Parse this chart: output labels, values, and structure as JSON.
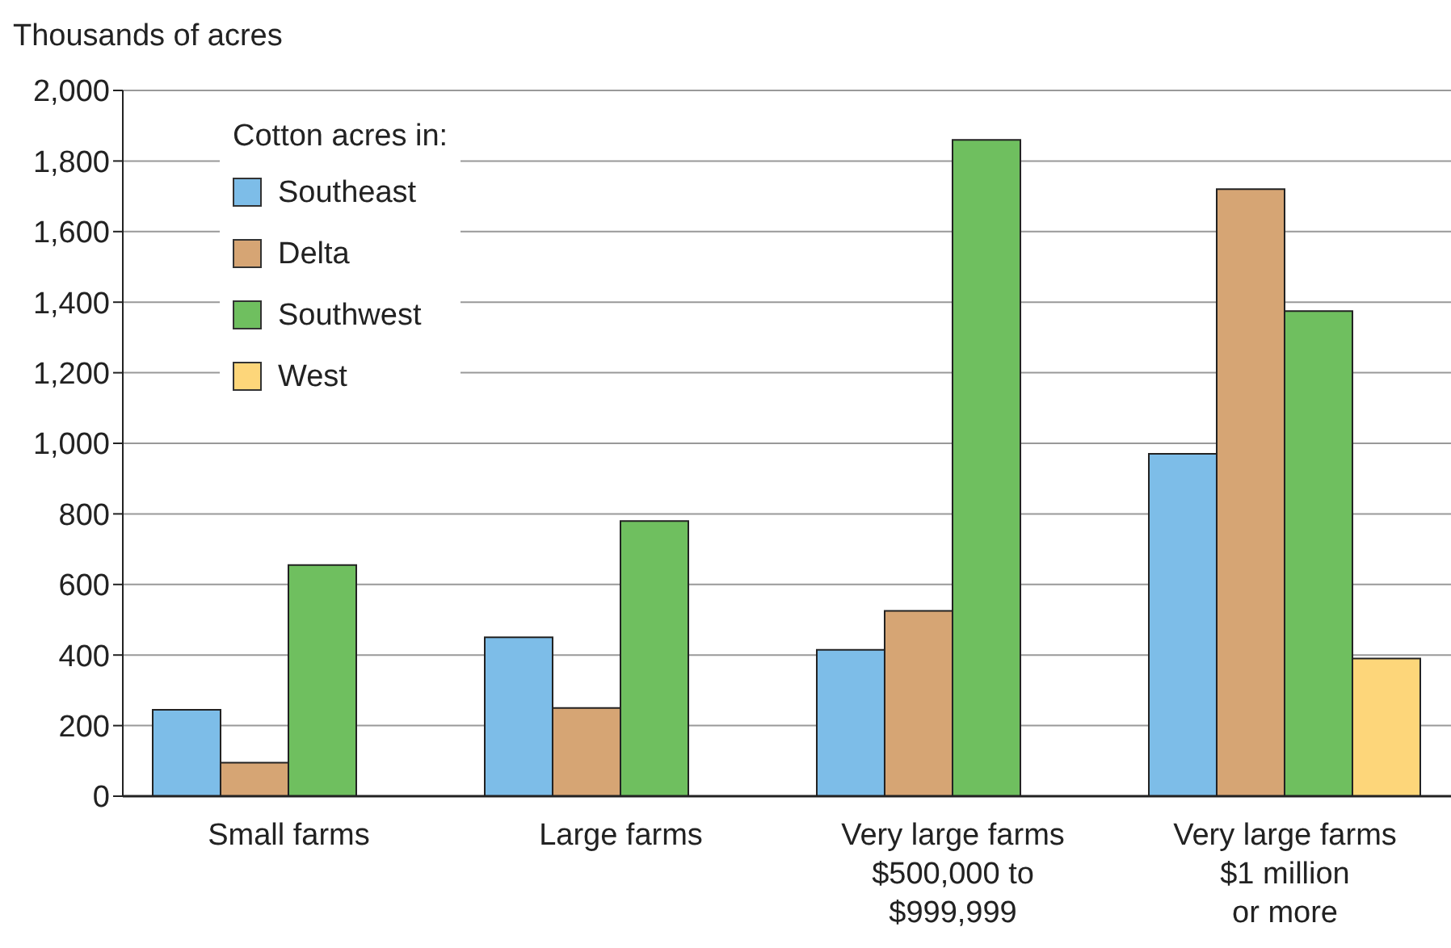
{
  "chart_data": {
    "type": "bar",
    "ylabel": "Thousands of acres",
    "legend_title": "Cotton acres in:",
    "categories": [
      "Small farms",
      "Large farms",
      "Very large farms\n$500,000 to\n$999,999",
      "Very large farms\n$1 million\nor more"
    ],
    "series": [
      {
        "name": "Southeast",
        "color": "#7dbde8",
        "values": [
          245,
          450,
          415,
          970
        ]
      },
      {
        "name": "Delta",
        "color": "#d6a574",
        "values": [
          95,
          250,
          525,
          1720
        ]
      },
      {
        "name": "Southwest",
        "color": "#6fbf5f",
        "values": [
          655,
          780,
          1860,
          1375
        ]
      },
      {
        "name": "West",
        "color": "#fdd67a",
        "values": [
          null,
          null,
          null,
          390
        ]
      }
    ],
    "ylim": [
      0,
      2000
    ],
    "yticks": [
      0,
      200,
      400,
      600,
      800,
      {
        "value": 1000,
        "label": "1,000"
      },
      {
        "value": 1200,
        "label": "1,200"
      },
      {
        "value": 1400,
        "label": "1,400"
      },
      {
        "value": 1600,
        "label": "1,600"
      },
      {
        "value": 1800,
        "label": "1,800"
      },
      {
        "value": 2000,
        "label": "2,000"
      }
    ],
    "grid": "y",
    "legend": "top left"
  }
}
